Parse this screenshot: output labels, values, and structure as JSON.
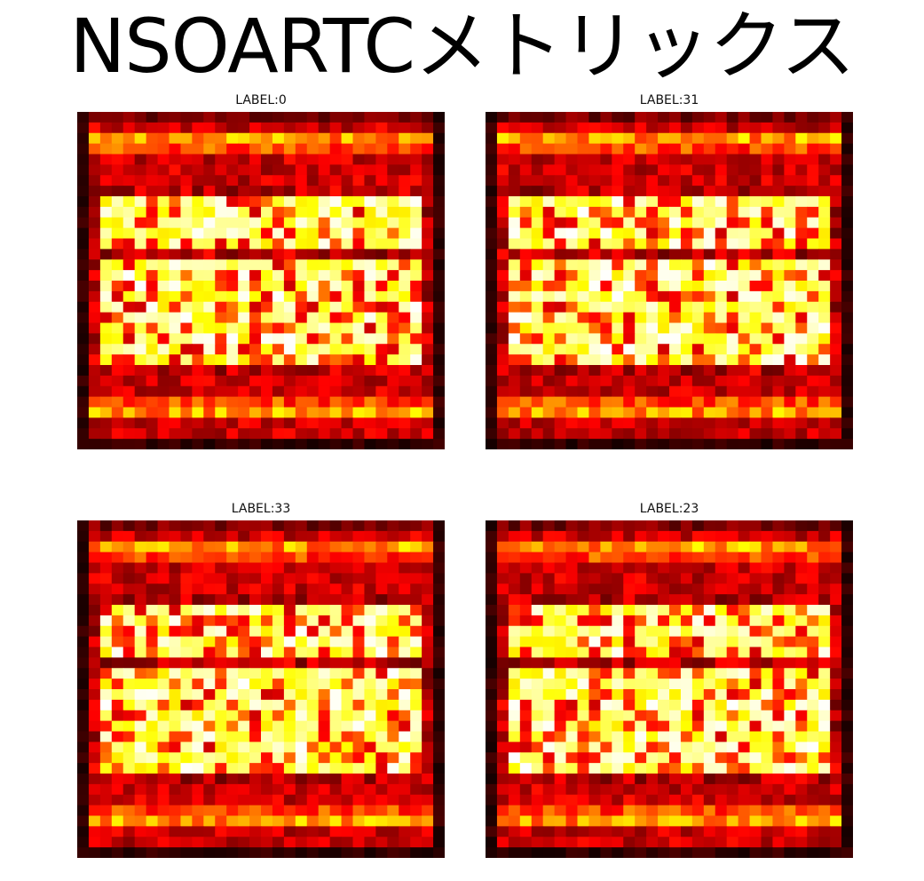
{
  "title": "NSOARTCメトリックス",
  "chart_data": [
    {
      "type": "heatmap",
      "title": "LABEL:0",
      "colormap": "hot",
      "grid": false,
      "seed": 11,
      "rows_of_digits": 3,
      "digits_per_row": 10
    },
    {
      "type": "heatmap",
      "title": "LABEL:31",
      "colormap": "hot",
      "grid": false,
      "seed": 23,
      "rows_of_digits": 3,
      "digits_per_row": 10
    },
    {
      "type": "heatmap",
      "title": "LABEL:33",
      "colormap": "hot",
      "grid": false,
      "seed": 37,
      "rows_of_digits": 3,
      "digits_per_row": 10
    },
    {
      "type": "heatmap",
      "title": "LABEL:23",
      "colormap": "hot",
      "grid": false,
      "seed": 53,
      "rows_of_digits": 3,
      "digits_per_row": 10
    }
  ]
}
